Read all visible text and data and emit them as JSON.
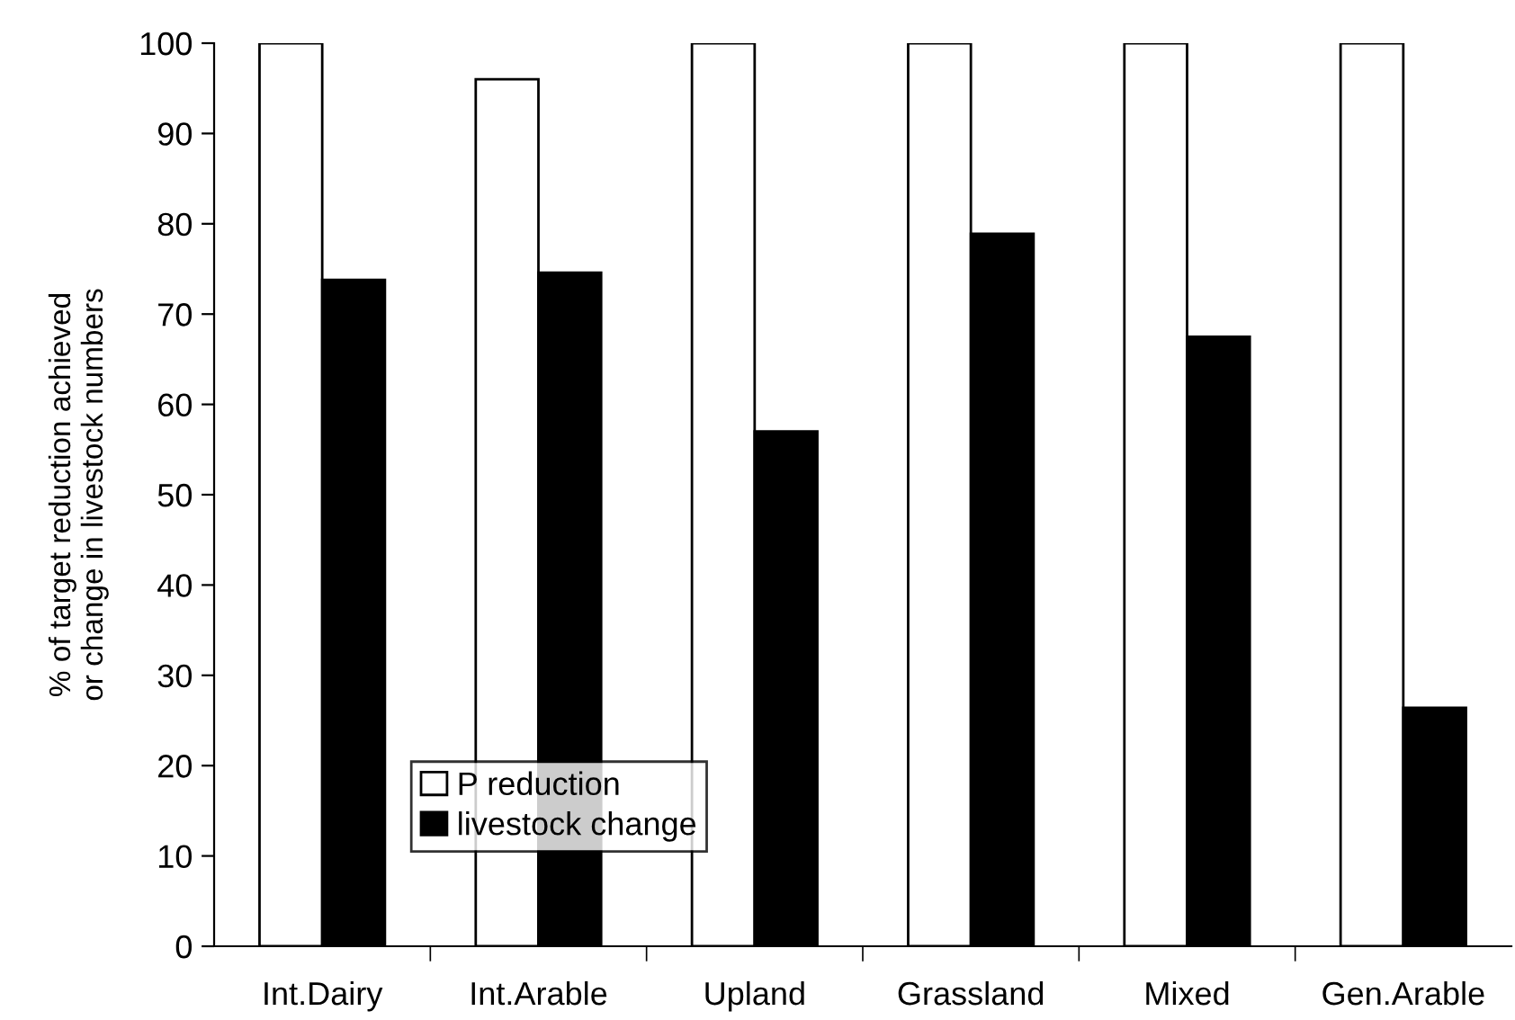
{
  "chart_data": {
    "type": "bar",
    "categories": [
      "Int.Dairy",
      "Int.Arable",
      "Upland",
      "Grassland",
      "Mixed",
      "Gen.Arable"
    ],
    "ylabel": "% of target reduction achieved\nor change in livestock numbers",
    "series": [
      {
        "name": "P reduction",
        "color": "#ffffff",
        "values": [
          100,
          96.0,
          100,
          100,
          100,
          100
        ]
      },
      {
        "name": "livestock change",
        "color": "#000000",
        "values": [
          73.8,
          74.6,
          57.0,
          78.9,
          67.5,
          26.4
        ]
      }
    ],
    "ylim": [
      0,
      100
    ],
    "yticks": [
      0,
      10,
      20,
      30,
      40,
      50,
      60,
      70,
      80,
      90,
      100
    ],
    "grid": false,
    "legend": "bottom left"
  }
}
